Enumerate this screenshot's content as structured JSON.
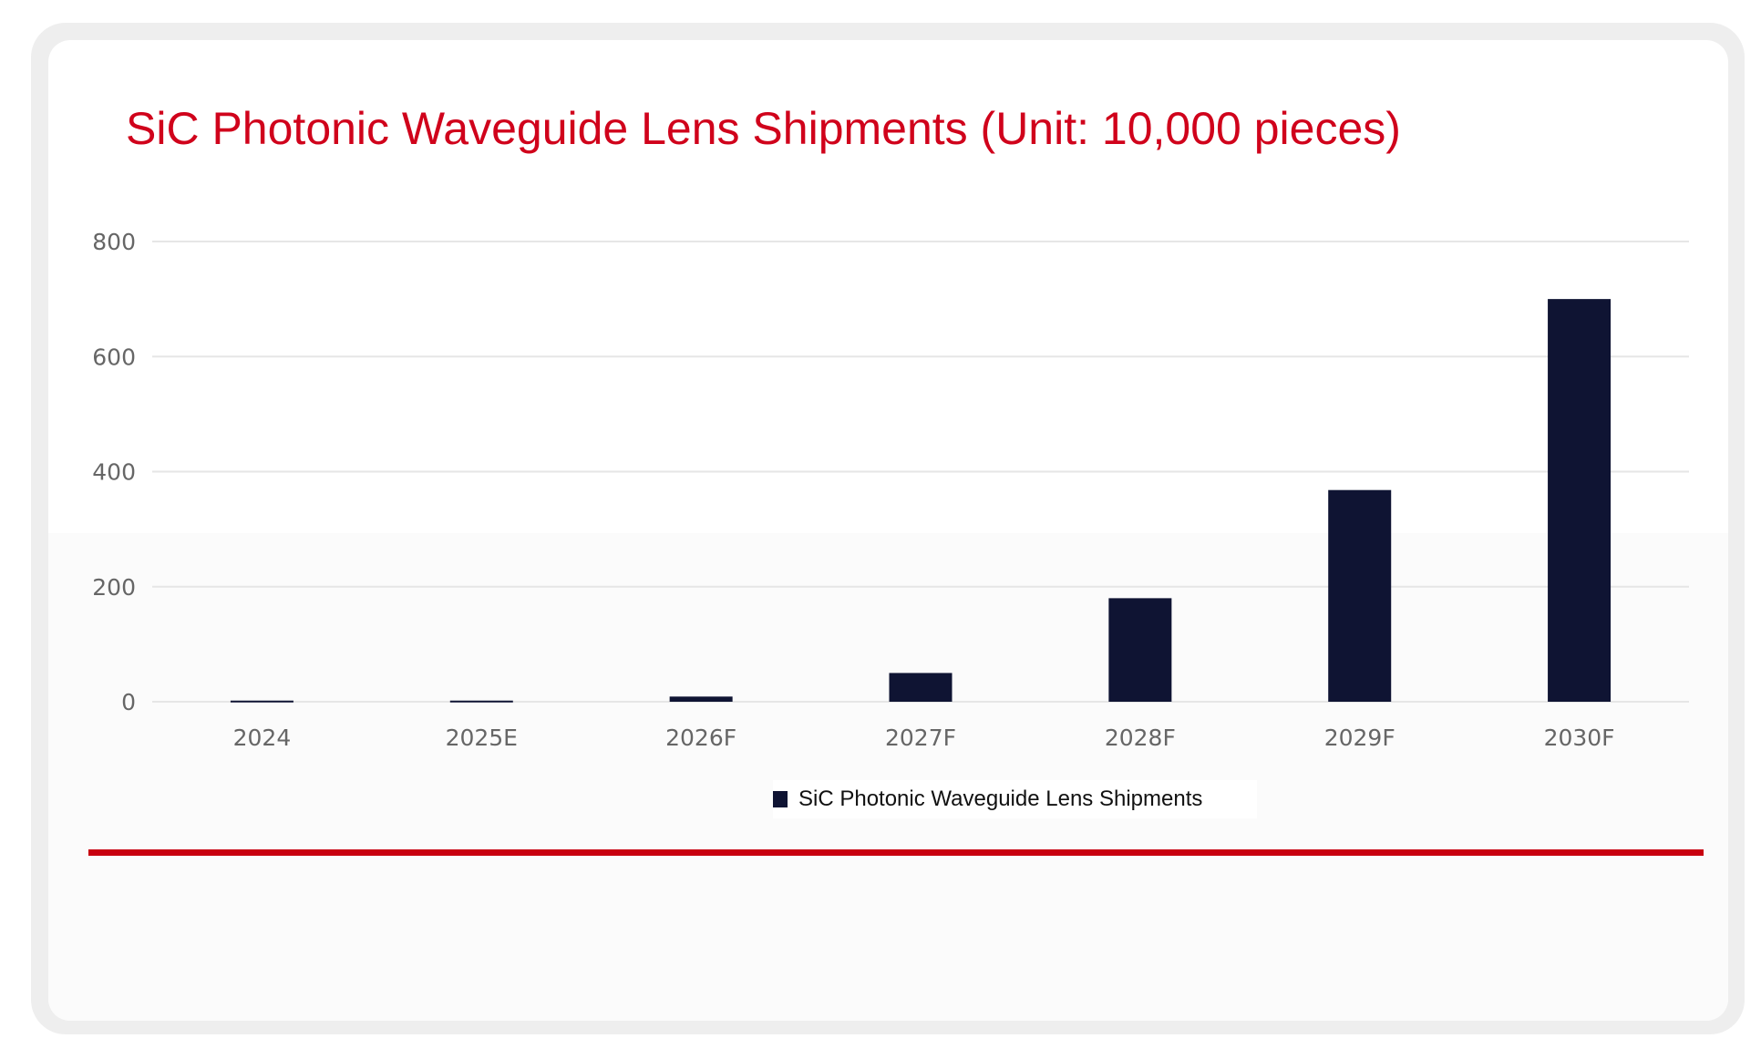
{
  "chart_data": {
    "type": "bar",
    "title": "SiC Photonic Waveguide Lens Shipments (Unit: 10,000 pieces)",
    "categories": [
      "2024",
      "2025E",
      "2026F",
      "2027F",
      "2028F",
      "2029F",
      "2030F"
    ],
    "series": [
      {
        "name": "SiC Photonic Waveguide Lens Shipments",
        "values": [
          2,
          2,
          9,
          50,
          180,
          368,
          700
        ]
      }
    ],
    "yticks": [
      0,
      200,
      400,
      600,
      800
    ],
    "ylim": [
      0,
      800
    ],
    "xlabel": "",
    "ylabel": "",
    "grid": true,
    "legend": "bottom-center",
    "colors": {
      "bar": "#0f1433",
      "title": "#d0021b",
      "rule": "#c8000f"
    }
  }
}
